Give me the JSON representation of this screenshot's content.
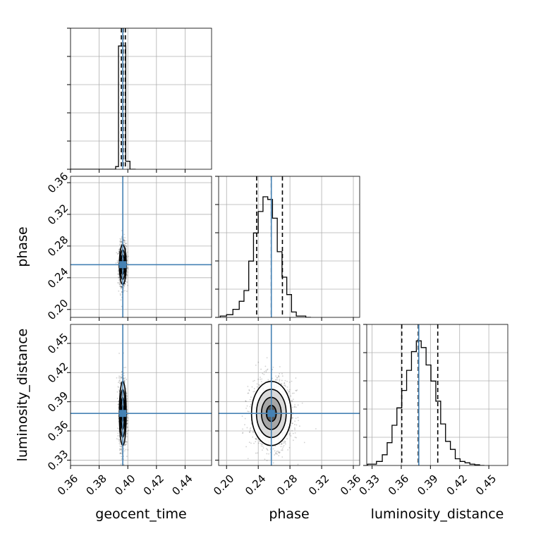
{
  "chart_data": {
    "type": "corner",
    "parameters": [
      "geocent_time",
      "phase",
      "luminosity_distance"
    ],
    "truths": {
      "geocent_time": 0.3965,
      "phase": 0.2565,
      "luminosity_distance": 0.378
    },
    "quantiles": {
      "geocent_time": [
        0.3955,
        0.3968,
        0.3983
      ],
      "phase": [
        0.238,
        0.2565,
        0.2705
      ],
      "luminosity_distance": [
        0.3605,
        0.3775,
        0.3975
      ]
    },
    "ranges": {
      "geocent_time": [
        0.36,
        0.4585
      ],
      "phase": [
        0.19,
        0.368
      ],
      "luminosity_distance": [
        0.3245,
        0.4695
      ]
    },
    "ticks": {
      "geocent_time": [
        "0.36",
        "0.38",
        "0.40",
        "0.42",
        "0.44"
      ],
      "phase": [
        "0.20",
        "0.24",
        "0.28",
        "0.32",
        "0.36"
      ],
      "luminosity_distance": [
        "0.33",
        "0.36",
        "0.39",
        "0.42",
        "0.45"
      ]
    },
    "tick_values": {
      "geocent_time": [
        0.36,
        0.38,
        0.4,
        0.42,
        0.44
      ],
      "phase": [
        0.2,
        0.24,
        0.28,
        0.32,
        0.36
      ],
      "luminosity_distance": [
        0.33,
        0.36,
        0.39,
        0.42,
        0.45
      ]
    },
    "histograms": {
      "geocent_time": {
        "edges": [
          0.3595,
          0.3915,
          0.3935,
          0.3955,
          0.3985,
          0.4015,
          0.4055
        ],
        "counts": [
          0,
          0.02,
          0.92,
          0.92,
          0.06,
          0
        ]
      },
      "phase": {
        "edges": [
          0.192,
          0.2,
          0.208,
          0.216,
          0.222,
          0.228,
          0.234,
          0.24,
          0.246,
          0.252,
          0.258,
          0.264,
          0.27,
          0.276,
          0.282,
          0.288,
          0.294,
          0.3,
          0.3065
        ],
        "counts": [
          0.01,
          0.02,
          0.06,
          0.12,
          0.2,
          0.42,
          0.63,
          0.79,
          0.9,
          0.88,
          0.74,
          0.49,
          0.3,
          0.17,
          0.04,
          0.01,
          0.01,
          0
        ]
      },
      "luminosity_distance": {
        "edges": [
          0.3255,
          0.3345,
          0.3405,
          0.3455,
          0.3505,
          0.3555,
          0.3605,
          0.3655,
          0.3705,
          0.3755,
          0.3805,
          0.3855,
          0.3905,
          0.3955,
          0.4005,
          0.4055,
          0.4105,
          0.4155,
          0.4205,
          0.4255,
          0.4305,
          0.4355,
          0.4405,
          0.4455
        ],
        "counts": [
          0.01,
          0.03,
          0.08,
          0.17,
          0.3,
          0.43,
          0.56,
          0.71,
          0.85,
          0.93,
          0.88,
          0.75,
          0.63,
          0.48,
          0.31,
          0.18,
          0.12,
          0.05,
          0.03,
          0.02,
          0.01,
          0.005,
          0
        ]
      }
    },
    "sample_spread": {
      "geocent_time": 0.0012,
      "phase": 0.0125,
      "luminosity_distance": 0.0165
    }
  }
}
